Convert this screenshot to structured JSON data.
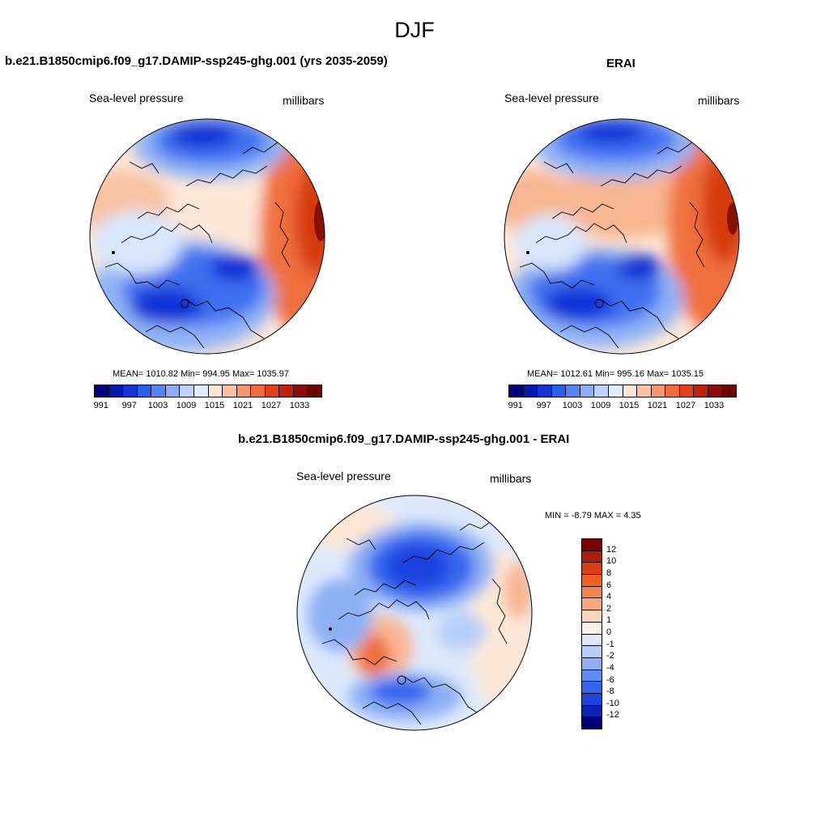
{
  "season": "DJF",
  "panels": {
    "model": {
      "title": "b.e21.B1850cmip6.f09_g17.DAMIP-ssp245-ghg.001 (yrs 2035-2059)",
      "variable": "Sea-level pressure",
      "units": "millibars",
      "stats": "MEAN= 1010.82  Min= 994.95  Max= 1035.97"
    },
    "obs": {
      "title": "ERAI",
      "variable": "Sea-level pressure",
      "units": "millibars",
      "stats": "MEAN= 1012.61  Min= 995.16  Max= 1035.15"
    },
    "diff": {
      "title": "b.e21.B1850cmip6.f09_g17.DAMIP-ssp245-ghg.001 - ERAI",
      "variable": "Sea-level pressure",
      "units": "millibars",
      "stats": "MIN =  -8.79 MAX =   4.35"
    }
  },
  "colorbars": {
    "abs": {
      "colors": [
        "#000080",
        "#0019b0",
        "#1436d8",
        "#2a5ef0",
        "#5585f5",
        "#8caef7",
        "#bcd3fb",
        "#deebfd",
        "#fde6d6",
        "#fbc2a3",
        "#f7956d",
        "#f26a3d",
        "#e24019",
        "#c42109",
        "#8c0b0b",
        "#6e0000"
      ],
      "labels": [
        "991",
        "997",
        "1003",
        "1009",
        "1015",
        "1021",
        "1027",
        "1033"
      ]
    },
    "diff": {
      "colors": [
        "#7a0000",
        "#b01d07",
        "#dc3f0d",
        "#f0601f",
        "#f5834d",
        "#f8a97e",
        "#fcd6bd",
        "#fdf0e6",
        "#dde9fb",
        "#b7cff8",
        "#8db0f4",
        "#5f8cf2",
        "#3465ef",
        "#1b43df",
        "#0c24b4",
        "#000078"
      ],
      "labels": [
        "12",
        "10",
        "8",
        "6",
        "4",
        "2",
        "1",
        "0",
        "-1",
        "-2",
        "-4",
        "-6",
        "-8",
        "-10",
        "-12"
      ]
    }
  },
  "colors": {
    "low_core": "#0a33d6",
    "low_mid": "#3f6ff0",
    "low_light": "#8fb3f5",
    "neutral_cool": "#d8e6fc",
    "neutral_warm": "#fde8d8",
    "high_light": "#f8b692",
    "high_mid": "#f0703c",
    "high_core": "#d63a10",
    "high_max": "#8a1005"
  }
}
